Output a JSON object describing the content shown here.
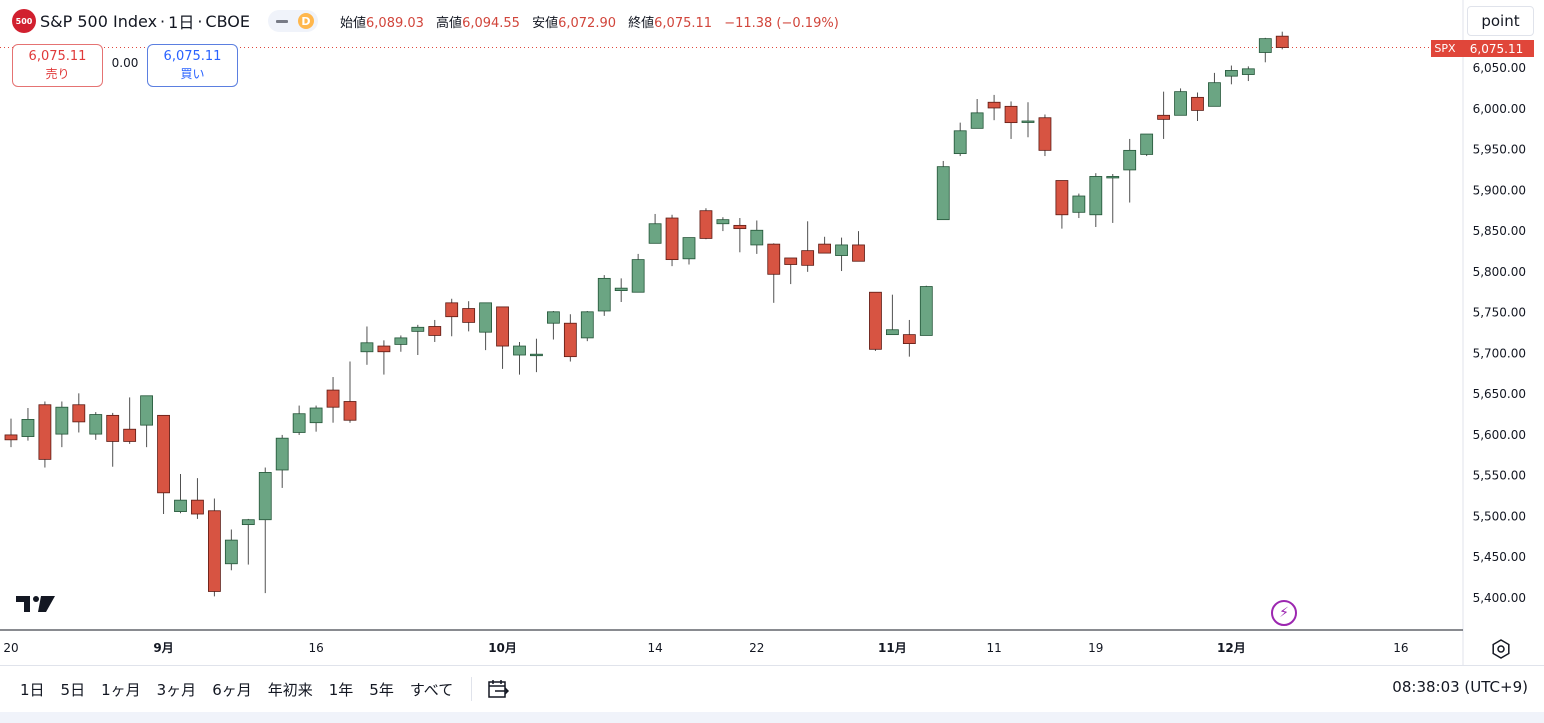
{
  "header": {
    "logo_text": "500",
    "symbol": "S&P 500 Index",
    "interval": "1日",
    "exchange": "CBOE",
    "toggle_letter": "D",
    "ohlc": {
      "open_label": "始値",
      "open": "6,089.03",
      "high_label": "高値",
      "high": "6,094.55",
      "low_label": "安値",
      "low": "6,072.90",
      "close_label": "終値",
      "close": "6,075.11",
      "change": "−11.38 (−0.19%)"
    }
  },
  "trade": {
    "sell_price": "6,075.11",
    "sell_label": "売り",
    "spread": "0.00",
    "buy_price": "6,075.11",
    "buy_label": "買い"
  },
  "tab_button": "point",
  "last_price_tag": {
    "symbol": "SPX",
    "price": "6,075.11"
  },
  "colors": {
    "up": "#6ba583",
    "down": "#d75442",
    "up_border": "#225437",
    "down_border": "#5b1a13",
    "price_line": "#e0463a"
  },
  "range_buttons": [
    "1日",
    "5日",
    "1ヶ月",
    "3ヶ月",
    "6ヶ月",
    "年初来",
    "1年",
    "5年",
    "すべて"
  ],
  "clock": "08:38:03 (UTC+9)",
  "chart_data": {
    "type": "candlestick",
    "symbol": "SPX",
    "y_ticks": [
      5400,
      5450,
      5500,
      5550,
      5600,
      5650,
      5700,
      5750,
      5800,
      5850,
      5900,
      5950,
      6000,
      6050
    ],
    "y_tick_labels": [
      "5,400.00",
      "5,450.00",
      "5,500.00",
      "5,550.00",
      "5,600.00",
      "5,650.00",
      "5,700.00",
      "5,750.00",
      "5,800.00",
      "5,850.00",
      "5,900.00",
      "5,950.00",
      "6,000.00",
      "6,050.00"
    ],
    "x_tick_labels": [
      {
        "label": "20",
        "date": "2024-08-20"
      },
      {
        "label": "9月",
        "date": "2024-09-03"
      },
      {
        "label": "16",
        "date": "2024-09-16"
      },
      {
        "label": "10月",
        "date": "2024-10-01"
      },
      {
        "label": "14",
        "date": "2024-10-14"
      },
      {
        "label": "22",
        "date": "2024-10-22"
      },
      {
        "label": "11月",
        "date": "2024-11-01"
      },
      {
        "label": "11",
        "date": "2024-11-11"
      },
      {
        "label": "19",
        "date": "2024-11-19"
      },
      {
        "label": "12月",
        "date": "2024-12-02"
      },
      {
        "label": "16",
        "date": "2024-12-16"
      }
    ],
    "last_price": 6075.11,
    "candles": [
      {
        "d": "2024-08-20",
        "o": 5600,
        "h": 5620,
        "l": 5585,
        "c": 5594
      },
      {
        "d": "2024-08-21",
        "o": 5598,
        "h": 5633,
        "l": 5593,
        "c": 5619
      },
      {
        "d": "2024-08-22",
        "o": 5637,
        "h": 5641,
        "l": 5560,
        "c": 5570
      },
      {
        "d": "2024-08-23",
        "o": 5601,
        "h": 5641,
        "l": 5585,
        "c": 5634
      },
      {
        "d": "2024-08-26",
        "o": 5637,
        "h": 5651,
        "l": 5603,
        "c": 5616
      },
      {
        "d": "2024-08-27",
        "o": 5601,
        "h": 5628,
        "l": 5594,
        "c": 5625
      },
      {
        "d": "2024-08-28",
        "o": 5624,
        "h": 5627,
        "l": 5561,
        "c": 5592
      },
      {
        "d": "2024-08-29",
        "o": 5607,
        "h": 5646,
        "l": 5589,
        "c": 5592
      },
      {
        "d": "2024-08-30",
        "o": 5612,
        "h": 5648,
        "l": 5585,
        "c": 5648
      },
      {
        "d": "2024-09-03",
        "o": 5624,
        "h": 5624,
        "l": 5503,
        "c": 5529
      },
      {
        "d": "2024-09-04",
        "o": 5506,
        "h": 5552,
        "l": 5504,
        "c": 5520
      },
      {
        "d": "2024-09-05",
        "o": 5520,
        "h": 5547,
        "l": 5497,
        "c": 5503
      },
      {
        "d": "2024-09-06",
        "o": 5507,
        "h": 5522,
        "l": 5402,
        "c": 5408
      },
      {
        "d": "2024-09-09",
        "o": 5442,
        "h": 5484,
        "l": 5434,
        "c": 5471
      },
      {
        "d": "2024-09-10",
        "o": 5490,
        "h": 5497,
        "l": 5441,
        "c": 5496
      },
      {
        "d": "2024-09-11",
        "o": 5496,
        "h": 5560,
        "l": 5406,
        "c": 5554
      },
      {
        "d": "2024-09-12",
        "o": 5557,
        "h": 5600,
        "l": 5535,
        "c": 5596
      },
      {
        "d": "2024-09-13",
        "o": 5603,
        "h": 5636,
        "l": 5600,
        "c": 5626
      },
      {
        "d": "2024-09-16",
        "o": 5615,
        "h": 5636,
        "l": 5604,
        "c": 5633
      },
      {
        "d": "2024-09-17",
        "o": 5655,
        "h": 5671,
        "l": 5615,
        "c": 5634
      },
      {
        "d": "2024-09-18",
        "o": 5641,
        "h": 5690,
        "l": 5615,
        "c": 5618
      },
      {
        "d": "2024-09-19",
        "o": 5702,
        "h": 5733,
        "l": 5686,
        "c": 5713
      },
      {
        "d": "2024-09-20",
        "o": 5709,
        "h": 5716,
        "l": 5674,
        "c": 5702
      },
      {
        "d": "2024-09-23",
        "o": 5711,
        "h": 5722,
        "l": 5702,
        "c": 5719
      },
      {
        "d": "2024-09-24",
        "o": 5727,
        "h": 5735,
        "l": 5698,
        "c": 5732
      },
      {
        "d": "2024-09-25",
        "o": 5733,
        "h": 5741,
        "l": 5714,
        "c": 5722
      },
      {
        "d": "2024-09-26",
        "o": 5762,
        "h": 5767,
        "l": 5721,
        "c": 5745
      },
      {
        "d": "2024-09-27",
        "o": 5755,
        "h": 5764,
        "l": 5727,
        "c": 5738
      },
      {
        "d": "2024-09-30",
        "o": 5726,
        "h": 5762,
        "l": 5704,
        "c": 5762
      },
      {
        "d": "2024-10-01",
        "o": 5757,
        "h": 5757,
        "l": 5681,
        "c": 5709
      },
      {
        "d": "2024-10-02",
        "o": 5698,
        "h": 5714,
        "l": 5674,
        "c": 5709
      },
      {
        "d": "2024-10-03",
        "o": 5698,
        "h": 5718,
        "l": 5677,
        "c": 5699
      },
      {
        "d": "2024-10-04",
        "o": 5737,
        "h": 5752,
        "l": 5717,
        "c": 5751
      },
      {
        "d": "2024-10-07",
        "o": 5737,
        "h": 5748,
        "l": 5690,
        "c": 5696
      },
      {
        "d": "2024-10-08",
        "o": 5719,
        "h": 5752,
        "l": 5715,
        "c": 5751
      },
      {
        "d": "2024-10-09",
        "o": 5752,
        "h": 5796,
        "l": 5746,
        "c": 5792
      },
      {
        "d": "2024-10-10",
        "o": 5777,
        "h": 5792,
        "l": 5763,
        "c": 5780
      },
      {
        "d": "2024-10-11",
        "o": 5775,
        "h": 5822,
        "l": 5775,
        "c": 5815
      },
      {
        "d": "2024-10-14",
        "o": 5835,
        "h": 5871,
        "l": 5835,
        "c": 5859
      },
      {
        "d": "2024-10-15",
        "o": 5866,
        "h": 5870,
        "l": 5807,
        "c": 5815
      },
      {
        "d": "2024-10-16",
        "o": 5816,
        "h": 5842,
        "l": 5809,
        "c": 5842
      },
      {
        "d": "2024-10-17",
        "o": 5875,
        "h": 5878,
        "l": 5840,
        "c": 5841
      },
      {
        "d": "2024-10-18",
        "o": 5859,
        "h": 5867,
        "l": 5850,
        "c": 5864
      },
      {
        "d": "2024-10-21",
        "o": 5857,
        "h": 5866,
        "l": 5824,
        "c": 5853
      },
      {
        "d": "2024-10-22",
        "o": 5833,
        "h": 5863,
        "l": 5822,
        "c": 5851
      },
      {
        "d": "2024-10-23",
        "o": 5834,
        "h": 5835,
        "l": 5762,
        "c": 5797
      },
      {
        "d": "2024-10-24",
        "o": 5817,
        "h": 5817,
        "l": 5785,
        "c": 5809
      },
      {
        "d": "2024-10-25",
        "o": 5826,
        "h": 5862,
        "l": 5800,
        "c": 5808
      },
      {
        "d": "2024-10-28",
        "o": 5834,
        "h": 5843,
        "l": 5823,
        "c": 5823
      },
      {
        "d": "2024-10-29",
        "o": 5820,
        "h": 5842,
        "l": 5801,
        "c": 5833
      },
      {
        "d": "2024-10-30",
        "o": 5833,
        "h": 5850,
        "l": 5813,
        "c": 5813
      },
      {
        "d": "2024-10-31",
        "o": 5775,
        "h": 5775,
        "l": 5703,
        "c": 5705
      },
      {
        "d": "2024-11-01",
        "o": 5723,
        "h": 5772,
        "l": 5723,
        "c": 5729
      },
      {
        "d": "2024-11-04",
        "o": 5723,
        "h": 5741,
        "l": 5696,
        "c": 5712
      },
      {
        "d": "2024-11-05",
        "o": 5722,
        "h": 5783,
        "l": 5722,
        "c": 5782
      },
      {
        "d": "2024-11-06",
        "o": 5864,
        "h": 5936,
        "l": 5864,
        "c": 5929
      },
      {
        "d": "2024-11-07",
        "o": 5945,
        "h": 5983,
        "l": 5942,
        "c": 5973
      },
      {
        "d": "2024-11-08",
        "o": 5976,
        "h": 6012,
        "l": 5976,
        "c": 5995
      },
      {
        "d": "2024-11-11",
        "o": 6008,
        "h": 6017,
        "l": 5986,
        "c": 6001
      },
      {
        "d": "2024-11-12",
        "o": 6003,
        "h": 6009,
        "l": 5963,
        "c": 5983
      },
      {
        "d": "2024-11-13",
        "o": 5985,
        "h": 6008,
        "l": 5965,
        "c": 5985
      },
      {
        "d": "2024-11-14",
        "o": 5989,
        "h": 5993,
        "l": 5942,
        "c": 5949
      },
      {
        "d": "2024-11-15",
        "o": 5912,
        "h": 5912,
        "l": 5853,
        "c": 5870
      },
      {
        "d": "2024-11-18",
        "o": 5873,
        "h": 5896,
        "l": 5866,
        "c": 5893
      },
      {
        "d": "2024-11-19",
        "o": 5870,
        "h": 5921,
        "l": 5855,
        "c": 5917
      },
      {
        "d": "2024-11-20",
        "o": 5917,
        "h": 5920,
        "l": 5860,
        "c": 5917
      },
      {
        "d": "2024-11-21",
        "o": 5925,
        "h": 5963,
        "l": 5885,
        "c": 5949
      },
      {
        "d": "2024-11-22",
        "o": 5944,
        "h": 5965,
        "l": 5942,
        "c": 5969
      },
      {
        "d": "2024-11-25",
        "o": 5992,
        "h": 6021,
        "l": 5963,
        "c": 5987
      },
      {
        "d": "2024-11-26",
        "o": 5992,
        "h": 6025,
        "l": 5992,
        "c": 6021
      },
      {
        "d": "2024-11-27",
        "o": 6014,
        "h": 6020,
        "l": 5985,
        "c": 5998
      },
      {
        "d": "2024-11-29",
        "o": 6003,
        "h": 6044,
        "l": 6003,
        "c": 6032
      },
      {
        "d": "2024-12-02",
        "o": 6040,
        "h": 6053,
        "l": 6030,
        "c": 6047
      },
      {
        "d": "2024-12-03",
        "o": 6042,
        "h": 6052,
        "l": 6034,
        "c": 6049
      },
      {
        "d": "2024-12-04",
        "o": 6069,
        "h": 6087,
        "l": 6057,
        "c": 6086
      },
      {
        "d": "2024-12-05",
        "o": 6089.03,
        "h": 6094.55,
        "l": 6072.9,
        "c": 6075.11
      }
    ]
  }
}
